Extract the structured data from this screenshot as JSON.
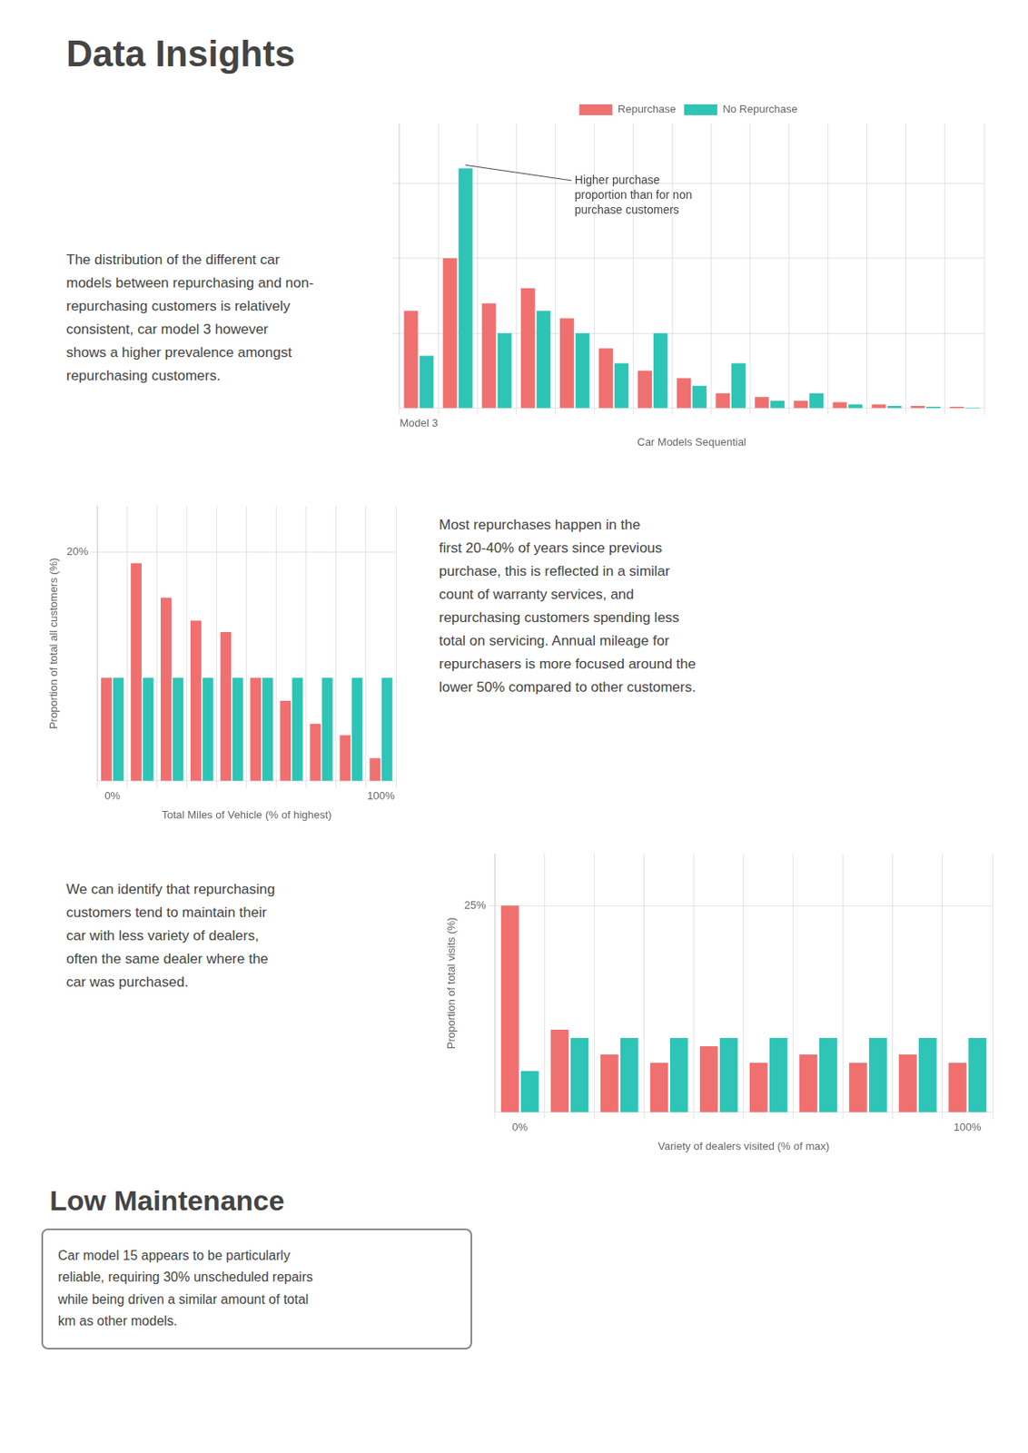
{
  "title": "Data Insights",
  "annotations": [
    {
      "title": "Low Maintenance",
      "text": "Car model 15 appears to be particularly\nreliable, requiring 30% unscheduled repairs\nwhile being driven a similar amount of total\nkm as other models."
    }
  ],
  "chart_data": [
    {
      "type": "bar",
      "subtitle": "The distribution of the different car\nmodels between repurchasing and non-\nrepurchasing customers is relatively\nconsistent, car model 3 however\nshows a higher prevalence amongst\nrepurchasing customers.",
      "xlabel": "Car Models Sequential",
      "categories": [
        "Model 3",
        null,
        null,
        null,
        null,
        null,
        null,
        null,
        null,
        null,
        null,
        null,
        null,
        null,
        null
      ],
      "series": [
        {
          "name": "Repurchase",
          "color": "#F07070",
          "values": [
            0.13,
            0.2,
            0.14,
            0.16,
            0.12,
            0.08,
            0.05,
            0.04,
            0.02,
            0.015,
            0.01,
            0.008,
            0.005,
            0.003,
            0.002
          ]
        },
        {
          "name": "No Repurchase",
          "color": "#2EC4B6",
          "values": [
            0.07,
            0.32,
            0.1,
            0.13,
            0.1,
            0.06,
            0.1,
            0.03,
            0.06,
            0.01,
            0.02,
            0.005,
            0.003,
            0.002,
            0.001
          ]
        }
      ],
      "ylim": [
        0,
        0.38
      ],
      "yticks": [
        0.1,
        0.2,
        0.3
      ],
      "grid": true,
      "tick_labels": "x",
      "legend": "top",
      "annotations": [
        "Higher purchase\nproportion than for non\npurchase customers"
      ]
    },
    {
      "type": "bar",
      "subtitle": "Most repurchases happen in the\nfirst 20-40% of years since previous\npurchase, this is reflected in a similar\ncount of warranty services, and\nrepurchasing customers spending less\ntotal on servicing. Annual mileage for\nrepurchasers is more focused around the\nlower 50% compared to other customers.",
      "xlabel": "Total Miles of Vehicle (% of highest)",
      "ylabel": "Proportion of total all customers (%)",
      "categories": [
        "0%",
        null,
        null,
        null,
        null,
        null,
        null,
        null,
        null,
        "100%"
      ],
      "series": [
        {
          "name": "Repurchase",
          "color": "#F07070",
          "values": [
            0.09,
            0.19,
            0.16,
            0.14,
            0.13,
            0.09,
            0.07,
            0.05,
            0.04,
            0.02
          ]
        },
        {
          "name": "No Repurchase",
          "color": "#2EC4B6",
          "values": [
            0.09,
            0.09,
            0.09,
            0.09,
            0.09,
            0.09,
            0.09,
            0.09,
            0.09,
            0.09
          ]
        }
      ],
      "ylim": [
        0,
        0.24
      ],
      "yticks": [
        {
          "value": 0.2,
          "label": "20%"
        }
      ],
      "grid": true
    },
    {
      "type": "bar",
      "subtitle": "We can identify that repurchasing\ncustomers tend to maintain their\ncar with less variety of dealers,\noften the same dealer where the\ncar was purchased.",
      "xlabel": "Variety of dealers visited (% of max)",
      "ylabel": "Proportion of total visits (%)",
      "categories": [
        "0%",
        null,
        null,
        null,
        null,
        null,
        null,
        null,
        null,
        "100%"
      ],
      "series": [
        {
          "name": "Repurchase",
          "color": "#F07070",
          "values": [
            0.25,
            0.1,
            0.07,
            0.06,
            0.08,
            0.06,
            0.07,
            0.06,
            0.07,
            0.06
          ]
        },
        {
          "name": "No Repurchase",
          "color": "#2EC4B6",
          "values": [
            0.05,
            0.09,
            0.09,
            0.09,
            0.09,
            0.09,
            0.09,
            0.09,
            0.09,
            0.09
          ]
        }
      ],
      "ylim": [
        0,
        0.3125
      ],
      "yticks": [
        {
          "value": 0.25,
          "label": "25%"
        }
      ],
      "grid": true
    }
  ]
}
